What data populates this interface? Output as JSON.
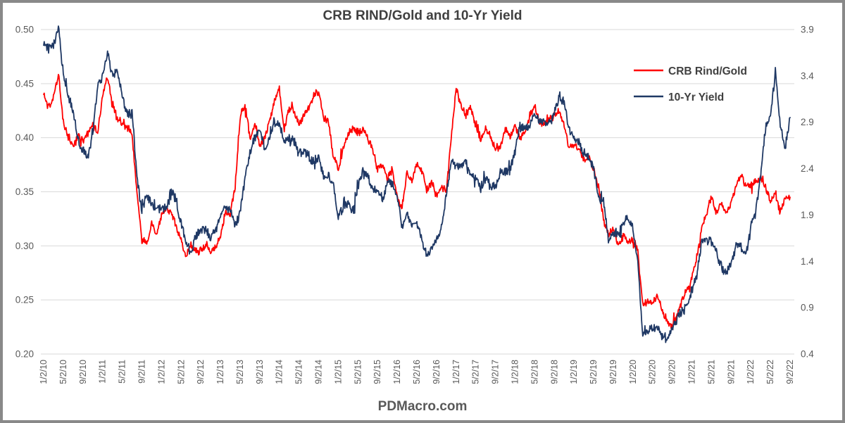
{
  "title": "CRB RIND/Gold and 10-Yr Yield",
  "watermark": "PDMacro.com",
  "legend": [
    {
      "label": "CRB Rind/Gold",
      "color": "#FF0000"
    },
    {
      "label": "10-Yr Yield",
      "color": "#1F3864"
    }
  ],
  "colors": {
    "crb_line": "#FF0000",
    "yield_line": "#1F3864",
    "gridline": "#D9D9D9",
    "title_text": "#404040",
    "axis_text": "#595959",
    "frame_border": "#898989"
  },
  "chart_data": {
    "type": "line",
    "title": "CRB RIND/Gold and 10-Yr Yield",
    "xlabel": "",
    "ylabel_left": "",
    "ylabel_right": "",
    "grid": "horizontal",
    "legend_position": "top-right-inside",
    "x_frequency": "monthly",
    "x_range": [
      "1/2/10",
      "9/2/22"
    ],
    "x_labels": [
      "1/2/10",
      "5/2/10",
      "9/2/10",
      "1/2/11",
      "5/2/11",
      "9/2/11",
      "1/2/12",
      "5/2/12",
      "9/2/12",
      "1/2/13",
      "5/2/13",
      "9/2/13",
      "1/2/14",
      "5/2/14",
      "9/2/14",
      "1/2/15",
      "5/2/15",
      "9/2/15",
      "1/2/16",
      "5/2/16",
      "9/2/16",
      "1/2/17",
      "5/2/17",
      "9/2/17",
      "1/2/18",
      "5/2/18",
      "9/2/18",
      "1/2/19",
      "5/2/19",
      "9/2/19",
      "1/2/20",
      "5/2/20",
      "9/2/20",
      "1/2/21",
      "5/2/21",
      "9/2/21",
      "1/2/22",
      "5/2/22",
      "9/2/22"
    ],
    "left_axis": {
      "min": 0.2,
      "max": 0.5,
      "ticks": [
        "0.50",
        "0.45",
        "0.40",
        "0.35",
        "0.30",
        "0.25",
        "0.20"
      ]
    },
    "right_axis": {
      "min": 0.4,
      "max": 3.9,
      "ticks": [
        "3.9",
        "3.4",
        "2.9",
        "2.4",
        "1.9",
        "1.4",
        "0.9",
        "0.4"
      ]
    },
    "series": [
      {
        "name": "CRB Rind/Gold",
        "axis": "left",
        "color": "#FF0000",
        "values": [
          0.44,
          0.428,
          0.437,
          0.458,
          0.415,
          0.4,
          0.392,
          0.402,
          0.398,
          0.405,
          0.412,
          0.405,
          0.438,
          0.457,
          0.432,
          0.42,
          0.412,
          0.41,
          0.402,
          0.35,
          0.305,
          0.302,
          0.32,
          0.31,
          0.328,
          0.335,
          0.33,
          0.318,
          0.305,
          0.29,
          0.3,
          0.296,
          0.295,
          0.302,
          0.294,
          0.3,
          0.31,
          0.33,
          0.328,
          0.355,
          0.42,
          0.43,
          0.4,
          0.412,
          0.392,
          0.4,
          0.415,
          0.435,
          0.445,
          0.405,
          0.428,
          0.425,
          0.412,
          0.422,
          0.428,
          0.438,
          0.443,
          0.418,
          0.415,
          0.382,
          0.372,
          0.39,
          0.403,
          0.408,
          0.405,
          0.408,
          0.4,
          0.388,
          0.37,
          0.375,
          0.362,
          0.372,
          0.345,
          0.336,
          0.37,
          0.36,
          0.375,
          0.37,
          0.352,
          0.36,
          0.345,
          0.355,
          0.35,
          0.4,
          0.444,
          0.43,
          0.42,
          0.43,
          0.41,
          0.4,
          0.41,
          0.4,
          0.39,
          0.392,
          0.41,
          0.4,
          0.41,
          0.4,
          0.405,
          0.42,
          0.43,
          0.415,
          0.412,
          0.418,
          0.42,
          0.425,
          0.41,
          0.39,
          0.395,
          0.39,
          0.38,
          0.385,
          0.37,
          0.355,
          0.325,
          0.31,
          0.315,
          0.3,
          0.31,
          0.305,
          0.305,
          0.295,
          0.245,
          0.25,
          0.245,
          0.255,
          0.24,
          0.23,
          0.225,
          0.235,
          0.25,
          0.26,
          0.27,
          0.29,
          0.315,
          0.33,
          0.345,
          0.33,
          0.34,
          0.33,
          0.34,
          0.355,
          0.365,
          0.355,
          0.355,
          0.36,
          0.362,
          0.355,
          0.34,
          0.35,
          0.33,
          0.345,
          0.345
        ]
      },
      {
        "name": "10-Yr Yield",
        "axis": "right",
        "color": "#1F3864",
        "values": [
          3.73,
          3.69,
          3.73,
          3.92,
          3.42,
          3.2,
          3.01,
          2.7,
          2.6,
          2.54,
          2.76,
          3.29,
          3.39,
          3.65,
          3.41,
          3.46,
          3.17,
          3.0,
          3.0,
          2.3,
          1.92,
          2.15,
          2.01,
          1.98,
          1.97,
          1.97,
          2.17,
          2.05,
          1.8,
          1.62,
          1.5,
          1.68,
          1.72,
          1.75,
          1.65,
          1.72,
          1.91,
          1.98,
          1.96,
          1.76,
          1.93,
          2.3,
          2.58,
          2.74,
          2.81,
          2.62,
          2.72,
          2.9,
          2.86,
          2.71,
          2.72,
          2.71,
          2.56,
          2.6,
          2.54,
          2.42,
          2.53,
          2.3,
          2.33,
          2.21,
          1.88,
          1.98,
          2.04,
          1.94,
          2.2,
          2.36,
          2.32,
          2.17,
          2.17,
          2.07,
          2.26,
          2.24,
          2.09,
          1.78,
          1.89,
          1.81,
          1.81,
          1.64,
          1.45,
          1.56,
          1.63,
          1.76,
          2.14,
          2.49,
          2.43,
          2.42,
          2.48,
          2.3,
          2.3,
          2.19,
          2.32,
          2.21,
          2.2,
          2.36,
          2.35,
          2.4,
          2.58,
          2.86,
          2.84,
          2.87,
          2.98,
          2.91,
          2.89,
          2.89,
          3.0,
          3.18,
          3.12,
          2.83,
          2.71,
          2.68,
          2.57,
          2.53,
          2.4,
          2.07,
          2.06,
          1.63,
          1.7,
          1.71,
          1.81,
          1.86,
          1.76,
          1.4,
          0.6,
          0.66,
          0.67,
          0.7,
          0.6,
          0.55,
          0.68,
          0.79,
          0.87,
          0.93,
          1.08,
          1.26,
          1.61,
          1.64,
          1.62,
          1.52,
          1.32,
          1.28,
          1.37,
          1.58,
          1.56,
          1.47,
          1.78,
          1.93,
          2.32,
          2.85,
          2.95,
          3.45,
          2.88,
          2.64,
          2.95
        ]
      }
    ]
  }
}
